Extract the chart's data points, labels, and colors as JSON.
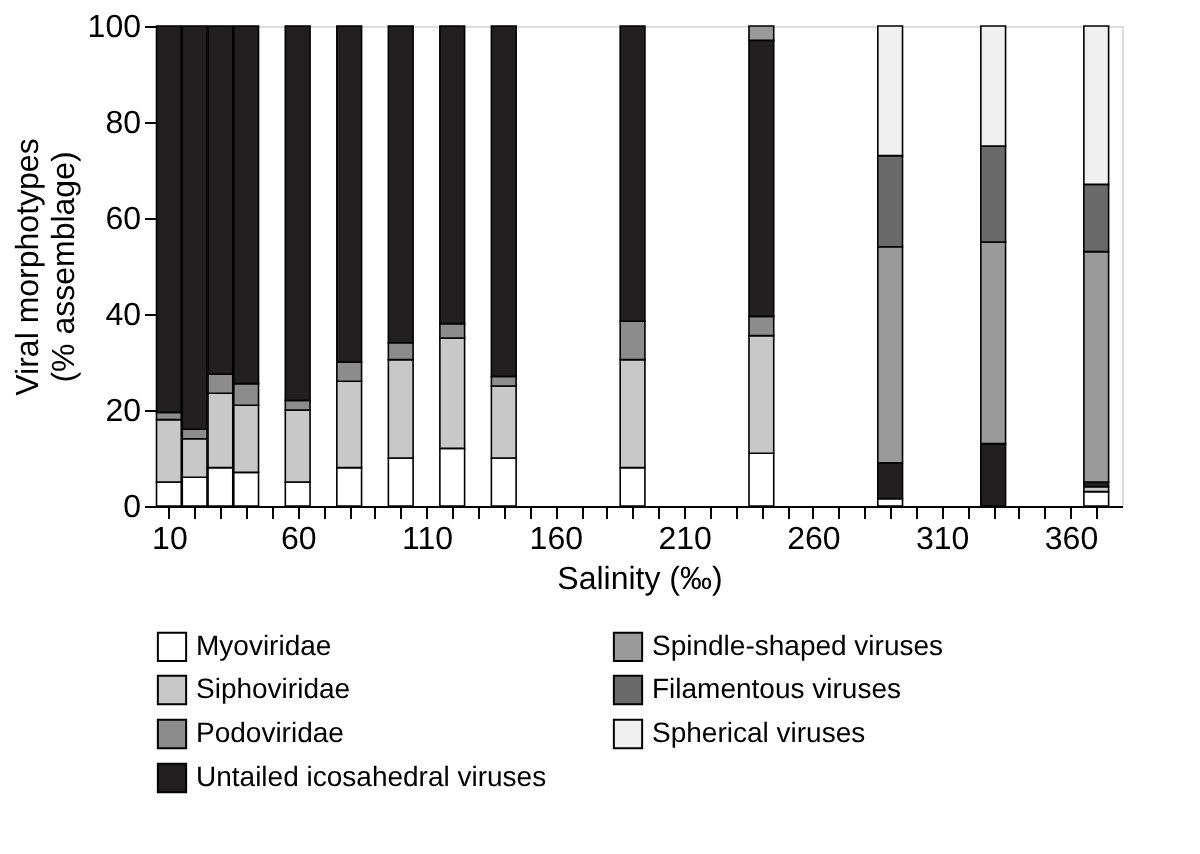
{
  "chart_data": {
    "type": "bar",
    "stacked": true,
    "xlabel": "Salinity (‰)",
    "ylabel": "Viral morphotypes\n(% assemblage)",
    "x": [
      10,
      20,
      30,
      40,
      60,
      80,
      100,
      120,
      140,
      190,
      240,
      290,
      330,
      370
    ],
    "series": [
      {
        "name": "Myoviridae",
        "color": "#ffffff",
        "values": [
          5,
          6,
          8,
          7,
          5,
          8,
          10,
          12,
          10,
          8,
          11,
          1.5,
          null,
          3
        ]
      },
      {
        "name": "Siphoviridae",
        "color": "#c8c8c8",
        "values": [
          13,
          8,
          15.5,
          14,
          15,
          18,
          20.5,
          23,
          15,
          22.5,
          24.5,
          null,
          null,
          1
        ]
      },
      {
        "name": "Podoviridae",
        "color": "#8c8c8c",
        "values": [
          1.5,
          2,
          4,
          4.5,
          2,
          4,
          3.5,
          3,
          2,
          8,
          4,
          null,
          null,
          null
        ]
      },
      {
        "name": "Untailed icosahedral viruses",
        "color": "#231f20",
        "values": [
          80.5,
          84,
          72.5,
          74.5,
          78,
          70,
          66,
          62,
          73,
          61.5,
          57.5,
          7.5,
          13,
          1
        ]
      },
      {
        "name": "Spindle-shaped viruses",
        "color": "#9a9a9a",
        "values": [
          null,
          null,
          null,
          null,
          null,
          null,
          null,
          null,
          null,
          null,
          3,
          45,
          42,
          48
        ]
      },
      {
        "name": "Filamentous viruses",
        "color": "#6a6a6a",
        "values": [
          null,
          null,
          null,
          null,
          null,
          null,
          null,
          null,
          null,
          null,
          null,
          19,
          20,
          14
        ]
      },
      {
        "name": "Spherical viruses",
        "color": "#f0f0f0",
        "values": [
          null,
          null,
          null,
          null,
          null,
          null,
          null,
          null,
          null,
          null,
          null,
          27,
          25,
          33
        ]
      }
    ],
    "xlim": [
      5,
      380
    ],
    "xticks": [
      10,
      {
        "value": 20,
        "label": null
      },
      {
        "value": 30,
        "label": null
      },
      {
        "value": 40,
        "label": null
      },
      {
        "value": 50,
        "label": null
      },
      60,
      {
        "value": 70,
        "label": null
      },
      {
        "value": 80,
        "label": null
      },
      {
        "value": 90,
        "label": null
      },
      {
        "value": 100,
        "label": null
      },
      110,
      {
        "value": 120,
        "label": null
      },
      {
        "value": 130,
        "label": null
      },
      {
        "value": 140,
        "label": null
      },
      {
        "value": 150,
        "label": null
      },
      160,
      {
        "value": 170,
        "label": null
      },
      {
        "value": 180,
        "label": null
      },
      {
        "value": 190,
        "label": null
      },
      {
        "value": 200,
        "label": null
      },
      210,
      {
        "value": 220,
        "label": null
      },
      {
        "value": 230,
        "label": null
      },
      {
        "value": 240,
        "label": null
      },
      {
        "value": 250,
        "label": null
      },
      260,
      {
        "value": 270,
        "label": null
      },
      {
        "value": 280,
        "label": null
      },
      {
        "value": 290,
        "label": null
      },
      {
        "value": 300,
        "label": null
      },
      310,
      {
        "value": 320,
        "label": null
      },
      {
        "value": 330,
        "label": null
      },
      {
        "value": 340,
        "label": null
      },
      {
        "value": 350,
        "label": null
      },
      360,
      {
        "value": 370,
        "label": null
      }
    ],
    "ylim": [
      0,
      100
    ],
    "yticks": [
      0,
      20,
      40,
      60,
      80,
      100
    ],
    "grid": false,
    "legend": "bottom"
  }
}
